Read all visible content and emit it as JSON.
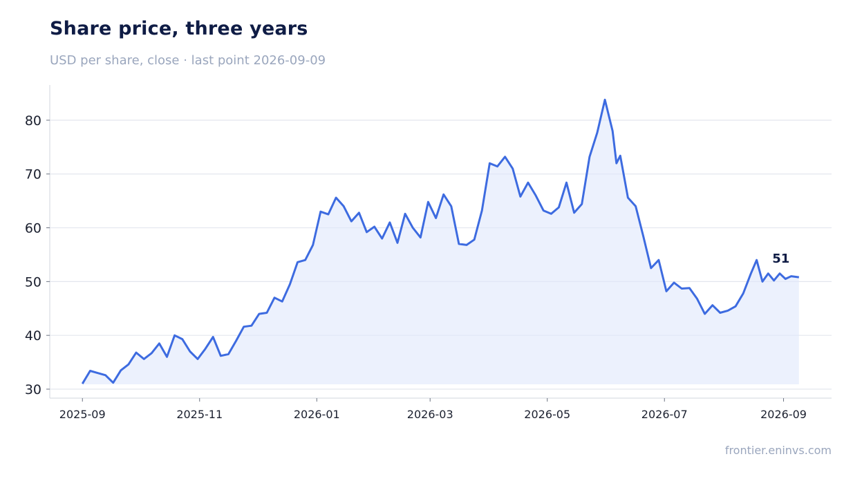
{
  "title": "Share price, three years",
  "subtitle": "USD per share, close · last point 2026-09-09",
  "source": "frontier.eninvs.com",
  "colors": {
    "line": "#3d6be0",
    "fill": "#dfe7fb",
    "grid": "#e3e6ee",
    "axis": "#d0d4de"
  },
  "chart_data": {
    "type": "area",
    "xlabel": "",
    "ylabel": "",
    "ylim": [
      30,
      85
    ],
    "yticks": [
      30,
      40,
      50,
      60,
      70,
      80
    ],
    "xlim": [
      "2025-08-15",
      "2026-09-26"
    ],
    "xticks": [
      "2025-09",
      "2025-11",
      "2026-01",
      "2026-03",
      "2026-05",
      "2026-07",
      "2026-09"
    ],
    "grid": "horizontal",
    "end_label": "51",
    "series": [
      {
        "points": [
          [
            "2025-09-01",
            31.0
          ],
          [
            "2025-09-05",
            33.4
          ],
          [
            "2025-09-09",
            33.0
          ],
          [
            "2025-09-13",
            32.6
          ],
          [
            "2025-09-17",
            31.2
          ],
          [
            "2025-09-21",
            33.5
          ],
          [
            "2025-09-25",
            34.6
          ],
          [
            "2025-09-29",
            36.8
          ],
          [
            "2025-10-03",
            35.6
          ],
          [
            "2025-10-07",
            36.7
          ],
          [
            "2025-10-11",
            38.5
          ],
          [
            "2025-10-15",
            36.0
          ],
          [
            "2025-10-19",
            40.0
          ],
          [
            "2025-10-23",
            39.3
          ],
          [
            "2025-10-27",
            37.0
          ],
          [
            "2025-10-31",
            35.6
          ],
          [
            "2025-11-04",
            37.5
          ],
          [
            "2025-11-08",
            39.7
          ],
          [
            "2025-11-12",
            36.2
          ],
          [
            "2025-11-16",
            36.5
          ],
          [
            "2025-11-20",
            39.0
          ],
          [
            "2025-11-24",
            41.6
          ],
          [
            "2025-11-28",
            41.8
          ],
          [
            "2025-12-02",
            44.0
          ],
          [
            "2025-12-06",
            44.2
          ],
          [
            "2025-12-10",
            47.0
          ],
          [
            "2025-12-14",
            46.3
          ],
          [
            "2025-12-18",
            49.5
          ],
          [
            "2025-12-22",
            53.6
          ],
          [
            "2025-12-26",
            54.0
          ],
          [
            "2025-12-30",
            56.8
          ],
          [
            "2026-01-03",
            63.0
          ],
          [
            "2026-01-07",
            62.5
          ],
          [
            "2026-01-11",
            65.6
          ],
          [
            "2026-01-15",
            64.0
          ],
          [
            "2026-01-19",
            61.2
          ],
          [
            "2026-01-23",
            62.8
          ],
          [
            "2026-01-27",
            59.2
          ],
          [
            "2026-01-31",
            60.2
          ],
          [
            "2026-02-04",
            58.0
          ],
          [
            "2026-02-08",
            61.0
          ],
          [
            "2026-02-12",
            57.2
          ],
          [
            "2026-02-16",
            62.6
          ],
          [
            "2026-02-20",
            60.0
          ],
          [
            "2026-02-24",
            58.2
          ],
          [
            "2026-02-28",
            64.8
          ],
          [
            "2026-03-04",
            61.8
          ],
          [
            "2026-03-08",
            66.2
          ],
          [
            "2026-03-12",
            64.0
          ],
          [
            "2026-03-16",
            57.0
          ],
          [
            "2026-03-20",
            56.8
          ],
          [
            "2026-03-24",
            57.8
          ],
          [
            "2026-03-28",
            63.2
          ],
          [
            "2026-04-01",
            72.0
          ],
          [
            "2026-04-05",
            71.4
          ],
          [
            "2026-04-09",
            73.2
          ],
          [
            "2026-04-13",
            71.0
          ],
          [
            "2026-04-17",
            65.8
          ],
          [
            "2026-04-21",
            68.4
          ],
          [
            "2026-04-25",
            66.0
          ],
          [
            "2026-04-29",
            63.2
          ],
          [
            "2026-05-03",
            62.6
          ],
          [
            "2026-05-07",
            63.8
          ],
          [
            "2026-05-11",
            68.4
          ],
          [
            "2026-05-15",
            62.8
          ],
          [
            "2026-05-19",
            64.4
          ],
          [
            "2026-05-23",
            73.2
          ],
          [
            "2026-05-27",
            77.7
          ],
          [
            "2026-05-31",
            83.8
          ],
          [
            "2026-06-04",
            78.0
          ],
          [
            "2026-06-06",
            72.0
          ],
          [
            "2026-06-08",
            73.4
          ],
          [
            "2026-06-12",
            65.6
          ],
          [
            "2026-06-16",
            64.0
          ],
          [
            "2026-06-20",
            58.4
          ],
          [
            "2026-06-24",
            52.5
          ],
          [
            "2026-06-28",
            54.0
          ],
          [
            "2026-07-02",
            48.2
          ],
          [
            "2026-07-06",
            49.8
          ],
          [
            "2026-07-10",
            48.7
          ],
          [
            "2026-07-14",
            48.8
          ],
          [
            "2026-07-18",
            46.8
          ],
          [
            "2026-07-22",
            44.0
          ],
          [
            "2026-07-26",
            45.6
          ],
          [
            "2026-07-30",
            44.2
          ],
          [
            "2026-08-03",
            44.6
          ],
          [
            "2026-08-07",
            45.4
          ],
          [
            "2026-08-11",
            47.8
          ],
          [
            "2026-08-15",
            51.5
          ],
          [
            "2026-08-18",
            54.0
          ],
          [
            "2026-08-21",
            50.0
          ],
          [
            "2026-08-24",
            51.5
          ],
          [
            "2026-08-27",
            50.2
          ],
          [
            "2026-08-30",
            51.5
          ],
          [
            "2026-09-02",
            50.5
          ],
          [
            "2026-09-05",
            51.0
          ],
          [
            "2026-09-09",
            50.8
          ]
        ]
      }
    ]
  }
}
